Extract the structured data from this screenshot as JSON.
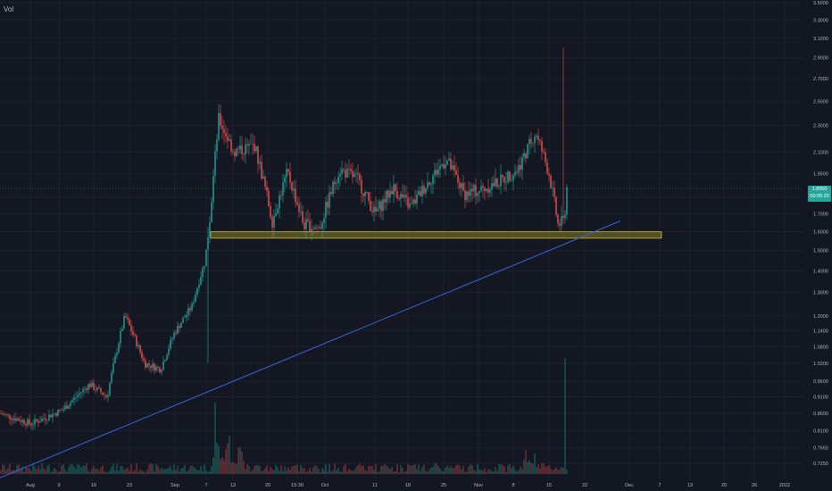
{
  "chart_data": {
    "type": "candlestick",
    "indicator_label": "Vol",
    "title": "",
    "xlabel": "",
    "ylabel": "",
    "y_scale": "log",
    "ylim": [
      0.7,
      3.5
    ],
    "y_ticks": [
      "3.5000",
      "3.3000",
      "3.1000",
      "2.9000",
      "2.7000",
      "2.5000",
      "2.3000",
      "2.1000",
      "1.9500",
      "1.8000",
      "1.7000",
      "1.6000",
      "1.5000",
      "1.4000",
      "1.3000",
      "1.2000",
      "1.1400",
      "1.0800",
      "1.0200",
      "0.9600",
      "0.9100",
      "0.8600",
      "0.8100",
      "0.7650",
      "0.7250"
    ],
    "x_ticks": [
      "Aug",
      "9",
      "16",
      "23",
      "Sep",
      "7",
      "13",
      "20",
      "15:30",
      "Oct",
      "11",
      "18",
      "25",
      "Nov",
      "8",
      "15",
      "22",
      "Dec",
      "7",
      "13",
      "20",
      "26",
      "2022"
    ],
    "last_price": {
      "value": "1.8550",
      "countdown": "00:05:20",
      "color": "#26a69a"
    },
    "up_color": "#26a69a",
    "down_color": "#ef5350",
    "series_keypoints": [
      {
        "x": 0,
        "y": 0.86
      },
      {
        "x": 35,
        "y": 0.83
      },
      {
        "x": 70,
        "y": 0.87
      },
      {
        "x": 100,
        "y": 0.95
      },
      {
        "x": 120,
        "y": 0.91
      },
      {
        "x": 140,
        "y": 1.2
      },
      {
        "x": 162,
        "y": 1.02
      },
      {
        "x": 180,
        "y": 1.0
      },
      {
        "x": 195,
        "y": 1.13
      },
      {
        "x": 215,
        "y": 1.24
      },
      {
        "x": 230,
        "y": 1.45
      },
      {
        "x": 236,
        "y": 1.72
      },
      {
        "x": 245,
        "y": 2.35
      },
      {
        "x": 262,
        "y": 2.1
      },
      {
        "x": 285,
        "y": 2.15
      },
      {
        "x": 305,
        "y": 1.66
      },
      {
        "x": 322,
        "y": 1.96
      },
      {
        "x": 340,
        "y": 1.64
      },
      {
        "x": 358,
        "y": 1.62
      },
      {
        "x": 380,
        "y": 1.98
      },
      {
        "x": 400,
        "y": 1.92
      },
      {
        "x": 420,
        "y": 1.7
      },
      {
        "x": 440,
        "y": 1.86
      },
      {
        "x": 460,
        "y": 1.74
      },
      {
        "x": 480,
        "y": 1.9
      },
      {
        "x": 500,
        "y": 2.05
      },
      {
        "x": 520,
        "y": 1.82
      },
      {
        "x": 540,
        "y": 1.85
      },
      {
        "x": 560,
        "y": 1.9
      },
      {
        "x": 580,
        "y": 1.98
      },
      {
        "x": 600,
        "y": 2.25
      },
      {
        "x": 615,
        "y": 1.95
      },
      {
        "x": 625,
        "y": 1.64
      },
      {
        "x": 632,
        "y": 1.66
      },
      {
        "x": 635,
        "y": 1.86
      }
    ],
    "support_zone": {
      "low": 1.565,
      "high": 1.6,
      "color": "#c9b92e"
    },
    "trendline": {
      "from": [
        0,
        0.69
      ],
      "to": [
        695,
        1.66
      ],
      "color": "#3f63d8"
    }
  }
}
